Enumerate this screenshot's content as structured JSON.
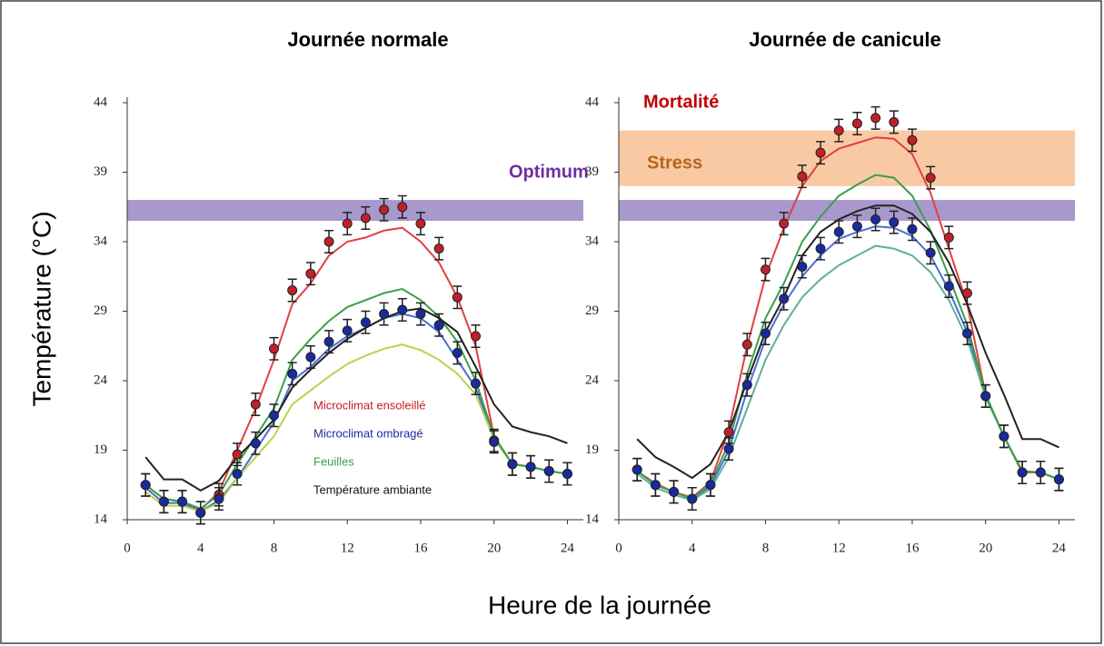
{
  "ylabel": "Température (°C)",
  "xlabel": "Heure de la journée",
  "chart_data": [
    {
      "type": "line",
      "title": "Journée normale",
      "x": [
        1,
        2,
        3,
        4,
        5,
        6,
        7,
        8,
        9,
        10,
        11,
        12,
        13,
        14,
        15,
        16,
        17,
        18,
        19,
        20,
        21,
        22,
        23,
        24
      ],
      "xlim": [
        0,
        24
      ],
      "xticks": [
        0,
        4,
        8,
        12,
        16,
        20,
        24
      ],
      "ylim": [
        14,
        44
      ],
      "yticks": [
        14,
        19,
        24,
        29,
        34,
        39,
        44
      ],
      "legend": true,
      "bands": [
        {
          "label": "Optimum",
          "range": [
            35.5,
            37
          ],
          "color": "#a898cc",
          "label_color": "#7030a0"
        }
      ],
      "series": [
        {
          "color": "#e04040",
          "values": [
            16.5,
            15.5,
            15.3,
            14.7,
            16,
            19,
            22,
            25.5,
            29.5,
            31,
            33,
            34,
            34.3,
            34.8,
            35,
            34,
            32.5,
            30,
            26.5,
            20,
            18,
            17.8,
            17.5,
            17.3
          ]
        },
        {
          "color": "#4a6fd0",
          "values": [
            16.3,
            15.2,
            15.2,
            14.6,
            15.4,
            17,
            19,
            21,
            24,
            25,
            26.3,
            27.2,
            27.8,
            28.5,
            28.8,
            28.5,
            27.5,
            25.5,
            23.5,
            19.8,
            18,
            17.8,
            17.5,
            17.3
          ]
        },
        {
          "color": "#bcd24a",
          "values": [
            16,
            15,
            15,
            14.6,
            15.2,
            17,
            18.5,
            20,
            22.3,
            23.3,
            24.3,
            25.2,
            25.8,
            26.3,
            26.6,
            26.2,
            25.5,
            24.5,
            23,
            19.8,
            18,
            17.8,
            17.5,
            17.3
          ]
        },
        {
          "name": "Feuilles",
          "color": "#3aa04a",
          "values": [
            16.5,
            15.5,
            15.3,
            14.8,
            15.8,
            18,
            20,
            22,
            25.5,
            27,
            28.3,
            29.3,
            29.8,
            30.3,
            30.6,
            29.8,
            28.6,
            26.8,
            24,
            20,
            18,
            17.8,
            17.5,
            17.3
          ]
        },
        {
          "name": "Température ambiante",
          "color": "#222222",
          "values": [
            18.5,
            16.9,
            16.9,
            16.1,
            16.8,
            18.5,
            19.8,
            21.2,
            23.5,
            24.8,
            26,
            27,
            27.8,
            28.5,
            29,
            29.2,
            28.5,
            27.5,
            25,
            22.3,
            20.7,
            20.3,
            20,
            19.5
          ]
        },
        {
          "name": "Microclimat ensoleillé",
          "color": "#c0202a",
          "markers": true,
          "values": [
            16.5,
            15.3,
            15.3,
            14.5,
            15.8,
            18.7,
            22.3,
            26.3,
            30.5,
            31.7,
            34,
            35.3,
            35.7,
            36.3,
            36.5,
            35.3,
            33.5,
            30,
            27.2,
            19.7,
            18,
            17.8,
            17.5,
            17.3
          ],
          "errors": [
            0.8,
            0.8,
            0.8,
            0.8,
            0.8,
            0.8,
            0.8,
            0.8,
            0.8,
            0.8,
            0.8,
            0.8,
            0.8,
            0.8,
            0.8,
            0.8,
            0.8,
            0.8,
            0.8,
            0.8,
            0.8,
            0.8,
            0.8,
            0.8
          ]
        },
        {
          "name": "Microclimat ombragé",
          "color": "#1a2aa0",
          "markers": true,
          "values": [
            16.5,
            15.3,
            15.3,
            14.5,
            15.5,
            17.3,
            19.5,
            21.5,
            24.5,
            25.7,
            26.8,
            27.6,
            28.2,
            28.8,
            29.1,
            28.8,
            28,
            26,
            23.8,
            19.6,
            18,
            17.8,
            17.5,
            17.3
          ],
          "errors": [
            0.8,
            0.8,
            0.8,
            0.8,
            0.8,
            0.8,
            0.8,
            0.8,
            0.8,
            0.8,
            0.8,
            0.8,
            0.8,
            0.8,
            0.8,
            0.8,
            0.8,
            0.8,
            0.8,
            0.8,
            0.8,
            0.8,
            0.8,
            0.8
          ]
        }
      ]
    },
    {
      "type": "line",
      "title": "Journée de canicule",
      "x": [
        1,
        2,
        3,
        4,
        5,
        6,
        7,
        8,
        9,
        10,
        11,
        12,
        13,
        14,
        15,
        16,
        17,
        18,
        19,
        20,
        21,
        22,
        23,
        24
      ],
      "xlim": [
        0,
        24
      ],
      "xticks": [
        0,
        4,
        8,
        12,
        16,
        20,
        24
      ],
      "ylim": [
        14,
        44
      ],
      "yticks": [
        14,
        19,
        24,
        29,
        34,
        39,
        44
      ],
      "legend": false,
      "annotations": [
        {
          "text": "Mortalité",
          "color": "#c00000"
        }
      ],
      "bands": [
        {
          "range": [
            35.5,
            37
          ],
          "color": "#a898cc"
        },
        {
          "label": "Stress",
          "range": [
            38,
            42
          ],
          "color": "#f9c9a3",
          "label_color": "#b5651d"
        }
      ],
      "series": [
        {
          "color": "#e04040",
          "values": [
            17.5,
            16.6,
            16,
            15.6,
            16.7,
            20.5,
            26.5,
            31.5,
            35,
            38,
            39.8,
            40.7,
            41.1,
            41.5,
            41.4,
            40.3,
            37.5,
            33.5,
            29.5,
            23,
            20,
            17.5,
            17.4,
            16.9
          ]
        },
        {
          "color": "#4a6fd0",
          "values": [
            17.5,
            16.5,
            16,
            15.5,
            16.4,
            19,
            23.3,
            27,
            29.5,
            31.5,
            33,
            34.2,
            34.7,
            35.1,
            35,
            34.4,
            33,
            30.5,
            27.5,
            22.9,
            20,
            17.4,
            17.4,
            16.9
          ]
        },
        {
          "color": "#5fb09a",
          "values": [
            17.3,
            16.3,
            15.8,
            15.4,
            16.2,
            18.5,
            22,
            25.5,
            28,
            30,
            31.3,
            32.3,
            33,
            33.7,
            33.5,
            33,
            31.8,
            29.8,
            27,
            22.8,
            20,
            17.4,
            17.4,
            16.9
          ]
        },
        {
          "color": "#3aa04a",
          "values": [
            17.5,
            16.5,
            16,
            15.5,
            16.6,
            19.5,
            24.5,
            28.5,
            31,
            34,
            35.8,
            37.3,
            38.1,
            38.8,
            38.6,
            37.3,
            34.8,
            31.5,
            28,
            23,
            20,
            17.4,
            17.4,
            16.9
          ]
        },
        {
          "color": "#222222",
          "values": [
            19.8,
            18.5,
            17.8,
            17,
            18,
            20.3,
            24,
            27.5,
            30,
            33,
            34.7,
            35.6,
            36.2,
            36.6,
            36.6,
            36,
            34.7,
            32.5,
            29.5,
            26,
            23,
            19.8,
            19.8,
            19.2
          ]
        },
        {
          "color": "#c0202a",
          "markers": true,
          "values": [
            17.6,
            16.5,
            16,
            15.5,
            16.5,
            20.3,
            26.6,
            32,
            35.3,
            38.7,
            40.4,
            42,
            42.5,
            42.9,
            42.6,
            41.3,
            38.6,
            34.3,
            30.3,
            22.9,
            20,
            17.4,
            17.4,
            16.9
          ],
          "errors": [
            0.8,
            0.8,
            0.8,
            0.8,
            0.8,
            0.8,
            0.8,
            0.8,
            0.8,
            0.8,
            0.8,
            0.8,
            0.8,
            0.8,
            0.8,
            0.8,
            0.8,
            0.8,
            0.8,
            0.8,
            0.8,
            0.8,
            0.8,
            0.8
          ]
        },
        {
          "color": "#1a2aa0",
          "markers": true,
          "values": [
            17.6,
            16.5,
            16,
            15.5,
            16.5,
            19.1,
            23.7,
            27.4,
            29.9,
            32.2,
            33.5,
            34.7,
            35.1,
            35.6,
            35.4,
            34.9,
            33.2,
            30.8,
            27.4,
            22.9,
            20,
            17.4,
            17.4,
            16.9
          ],
          "errors": [
            0.8,
            0.8,
            0.8,
            0.8,
            0.8,
            0.8,
            0.8,
            0.8,
            0.8,
            0.8,
            0.8,
            0.8,
            0.8,
            0.8,
            0.8,
            0.8,
            0.8,
            0.8,
            0.8,
            0.8,
            0.8,
            0.8,
            0.8,
            0.8
          ]
        }
      ]
    }
  ]
}
